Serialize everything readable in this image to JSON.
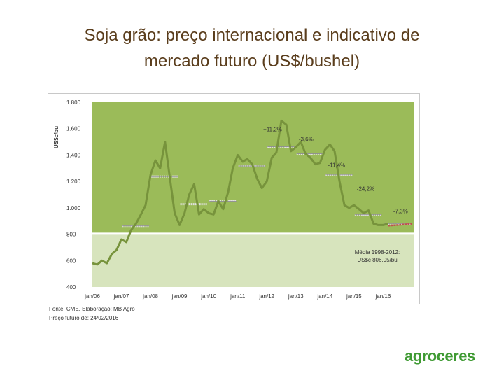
{
  "title_line1": "Soja grão: preço internacional e indicativo de",
  "title_line2": "mercado futuro (US$/bushel)",
  "footnote_source": "Fonte: CME. Elaboração: MB Agro",
  "footnote_future": "Preço futuro de: 24/02/2016",
  "logo": "agroceres",
  "colors": {
    "plot_upper": "#9bbb59",
    "plot_lower": "#d7e4bd",
    "price_line": "#77933c",
    "average_line": "#ffffff",
    "step_marker": "#c0c0c0",
    "future_line": "#c0504d"
  },
  "chart_data": {
    "type": "line",
    "ylabel": "US$c/bu",
    "ylim": [
      400,
      1800
    ],
    "yticks": [
      "1.800",
      "1.600",
      "1.400",
      "1.200",
      "1.000",
      "800",
      "600",
      "400"
    ],
    "ytick_values": [
      1800,
      1600,
      1400,
      1200,
      1000,
      800,
      600,
      400
    ],
    "xticks": [
      "jan/06",
      "jan/07",
      "jan/08",
      "jan/09",
      "jan/10",
      "jan/11",
      "jan/12",
      "jan/13",
      "jan/14",
      "jan/15",
      "jan/16"
    ],
    "xtick_values": [
      2006,
      2007,
      2008,
      2009,
      2010,
      2011,
      2012,
      2013,
      2014,
      2015,
      2016
    ],
    "xlim": [
      2006,
      2017.05
    ],
    "grid": false,
    "average": {
      "value": 806.05,
      "label_line1": "Média 1998-2012:",
      "label_line2": "US$c 806,05/bu"
    },
    "series": [
      {
        "x": [
          2006,
          2006.17,
          2006.33,
          2006.5,
          2006.67,
          2006.83,
          2007,
          2007.17,
          2007.33,
          2007.5,
          2007.67,
          2007.83,
          2008,
          2008.17,
          2008.33,
          2008.5,
          2008.67,
          2008.83,
          2009,
          2009.17,
          2009.33,
          2009.5,
          2009.67,
          2009.83,
          2010,
          2010.17,
          2010.33,
          2010.5,
          2010.67,
          2010.83,
          2011,
          2011.17,
          2011.33,
          2011.5,
          2011.67,
          2011.83,
          2012,
          2012.17,
          2012.33,
          2012.5,
          2012.67,
          2012.83,
          2013,
          2013.17,
          2013.33,
          2013.5,
          2013.67,
          2013.83,
          2014,
          2014.17,
          2014.33,
          2014.5,
          2014.67,
          2014.83,
          2015,
          2015.17,
          2015.33,
          2015.5,
          2015.67,
          2015.83,
          2016,
          2016.17
        ],
        "y": [
          580,
          570,
          600,
          580,
          650,
          680,
          760,
          740,
          830,
          880,
          950,
          1020,
          1250,
          1360,
          1300,
          1500,
          1220,
          960,
          870,
          960,
          1100,
          1180,
          950,
          990,
          960,
          950,
          1050,
          990,
          1120,
          1300,
          1400,
          1350,
          1370,
          1330,
          1220,
          1150,
          1200,
          1380,
          1420,
          1660,
          1630,
          1430,
          1460,
          1500,
          1410,
          1380,
          1330,
          1340,
          1440,
          1480,
          1430,
          1200,
          1020,
          1000,
          1020,
          990,
          960,
          980,
          880,
          870,
          870,
          880
        ]
      }
    ],
    "averages_by_year": [
      {
        "x_start": 2007,
        "x_end": 2008,
        "value": 863
      },
      {
        "x_start": 2008,
        "x_end": 2009,
        "value": 1237
      },
      {
        "x_start": 2009,
        "x_end": 2010,
        "value": 1028
      },
      {
        "x_start": 2010,
        "x_end": 2011,
        "value": 1050
      },
      {
        "x_start": 2011,
        "x_end": 2012,
        "value": 1317
      },
      {
        "x_start": 2012,
        "x_end": 2013,
        "value": 1463
      },
      {
        "x_start": 2013,
        "x_end": 2014,
        "value": 1410
      },
      {
        "x_start": 2014,
        "x_end": 2015,
        "value": 1250
      },
      {
        "x_start": 2015,
        "x_end": 2016,
        "value": 948
      },
      {
        "x_start": 2016,
        "x_end": 2017,
        "value": 880
      }
    ],
    "futures": {
      "x": [
        2016.17,
        2016.5,
        2016.8,
        2017
      ],
      "y": [
        865,
        870,
        875,
        880
      ]
    },
    "annotations": [
      {
        "text": "+11,2%",
        "x": 2012.2,
        "y": 1580
      },
      {
        "text": "-3,6%",
        "x": 2013.35,
        "y": 1505
      },
      {
        "text": "-11,4%",
        "x": 2014.4,
        "y": 1310
      },
      {
        "text": "-24,2%",
        "x": 2015.4,
        "y": 1130
      },
      {
        "text": "-7,3%",
        "x": 2016.6,
        "y": 960
      }
    ]
  }
}
